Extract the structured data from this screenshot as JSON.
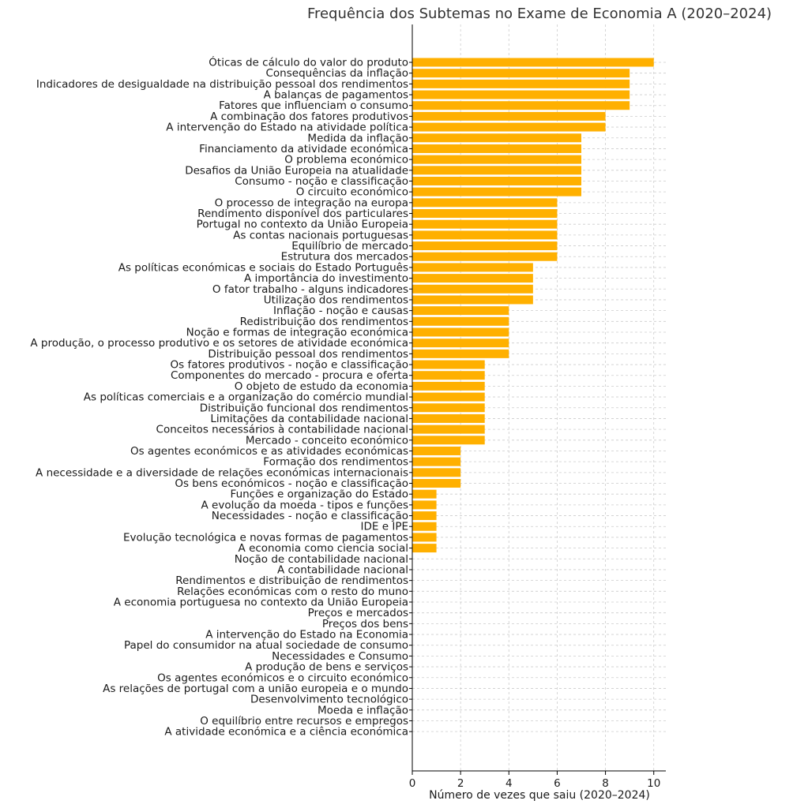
{
  "chart_data": {
    "type": "bar",
    "orientation": "horizontal",
    "title": "Frequência dos Subtemas no Exame de Economia A (2020–2024)",
    "xlabel": "Número de vezes que saiu (2020–2024)",
    "ylabel": "",
    "xlim": [
      0,
      10.5
    ],
    "xticks": [
      0,
      2,
      4,
      6,
      8,
      10
    ],
    "grid": true,
    "bar_color": "#FFB000",
    "categories": [
      "Óticas de cálculo do valor do produto",
      "Consequências da inflação",
      "Indicadores de desigualdade na distribuição pessoal dos rendimentos",
      "A balanças de pagamentos",
      "Fatores que influenciam o consumo",
      "A combinação dos fatores produtivos",
      "A intervenção do Estado na atividade política",
      "Medida da inflação",
      "Financiamento da atividade económica",
      "O problema económico ",
      "Desafios da União Europeia na atualidade",
      "Consumo - noção e classificação",
      "O circuito económico",
      "O processo de integração na europa",
      "Rendimento disponível dos particulares",
      "Portugal no contexto da União Europeia",
      "As contas nacionais portuguesas",
      "Equilíbrio de mercado",
      "Estrutura dos mercados",
      "As políticas económicas e sociais do Estado Português",
      "A importância do investimento",
      "O fator trabalho - alguns indicadores",
      "Utilização dos rendimentos",
      "Inflação - noção e causas",
      "Redistribuição dos rendimentos",
      "Noção e formas de integração económica",
      "A produção, o processo produtivo e os setores de atividade económica",
      "Distribuição pessoal dos rendimentos",
      "Os fatores produtivos - noção e classificação",
      "Componentes do mercado - procura e oferta",
      "O objeto de estudo da economia",
      "As políticas comerciais e a organização do comércio mundial",
      "Distribuição funcional dos rendimentos",
      "Limitações da contabilidade nacional",
      "Conceitos necessários à contabilidade nacional",
      "Mercado - conceito económico",
      "Os agentes económicos e as atividades económicas",
      "Formação dos rendimentos",
      "A necessidade e a diversidade de relações económicas internacionais ",
      "Os bens económicos - noção e classificação",
      "Funções e organização do Estado",
      "A evolução da moeda - tipos e funções",
      "Necessidades - noção e classificação",
      "IDE e IPE",
      "Evolução tecnológica e novas formas de pagamentos",
      "A economia como ciencia social",
      "Noção de contabilidade nacional",
      "A contabilidade nacional",
      "Rendimentos e distribuição de rendimentos",
      "Relações económicas com o resto do muno",
      "A economia portuguesa no contexto da União Europeia",
      "Preços e mercados",
      "Preços dos bens",
      "A intervenção do Estado na Economia",
      "Papel do consumidor na atual sociedade de consumo",
      "Necessidades e Consumo",
      "A produção de bens e serviços",
      "Os agentes económicos e o circuito económico",
      "As relações de portugal com a união europeia e o mundo",
      "Desenvolvimento tecnológico",
      "Moeda e inflação",
      "O equilíbrio entre recursos e empregos",
      "A atividade económica e a ciência económica"
    ],
    "values": [
      10,
      9,
      9,
      9,
      9,
      8,
      8,
      7,
      7,
      7,
      7,
      7,
      7,
      6,
      6,
      6,
      6,
      6,
      6,
      5,
      5,
      5,
      5,
      4,
      4,
      4,
      4,
      4,
      3,
      3,
      3,
      3,
      3,
      3,
      3,
      3,
      2,
      2,
      2,
      2,
      1,
      1,
      1,
      1,
      1,
      1,
      0,
      0,
      0,
      0,
      0,
      0,
      0,
      0,
      0,
      0,
      0,
      0,
      0,
      0,
      0,
      0,
      0
    ]
  }
}
